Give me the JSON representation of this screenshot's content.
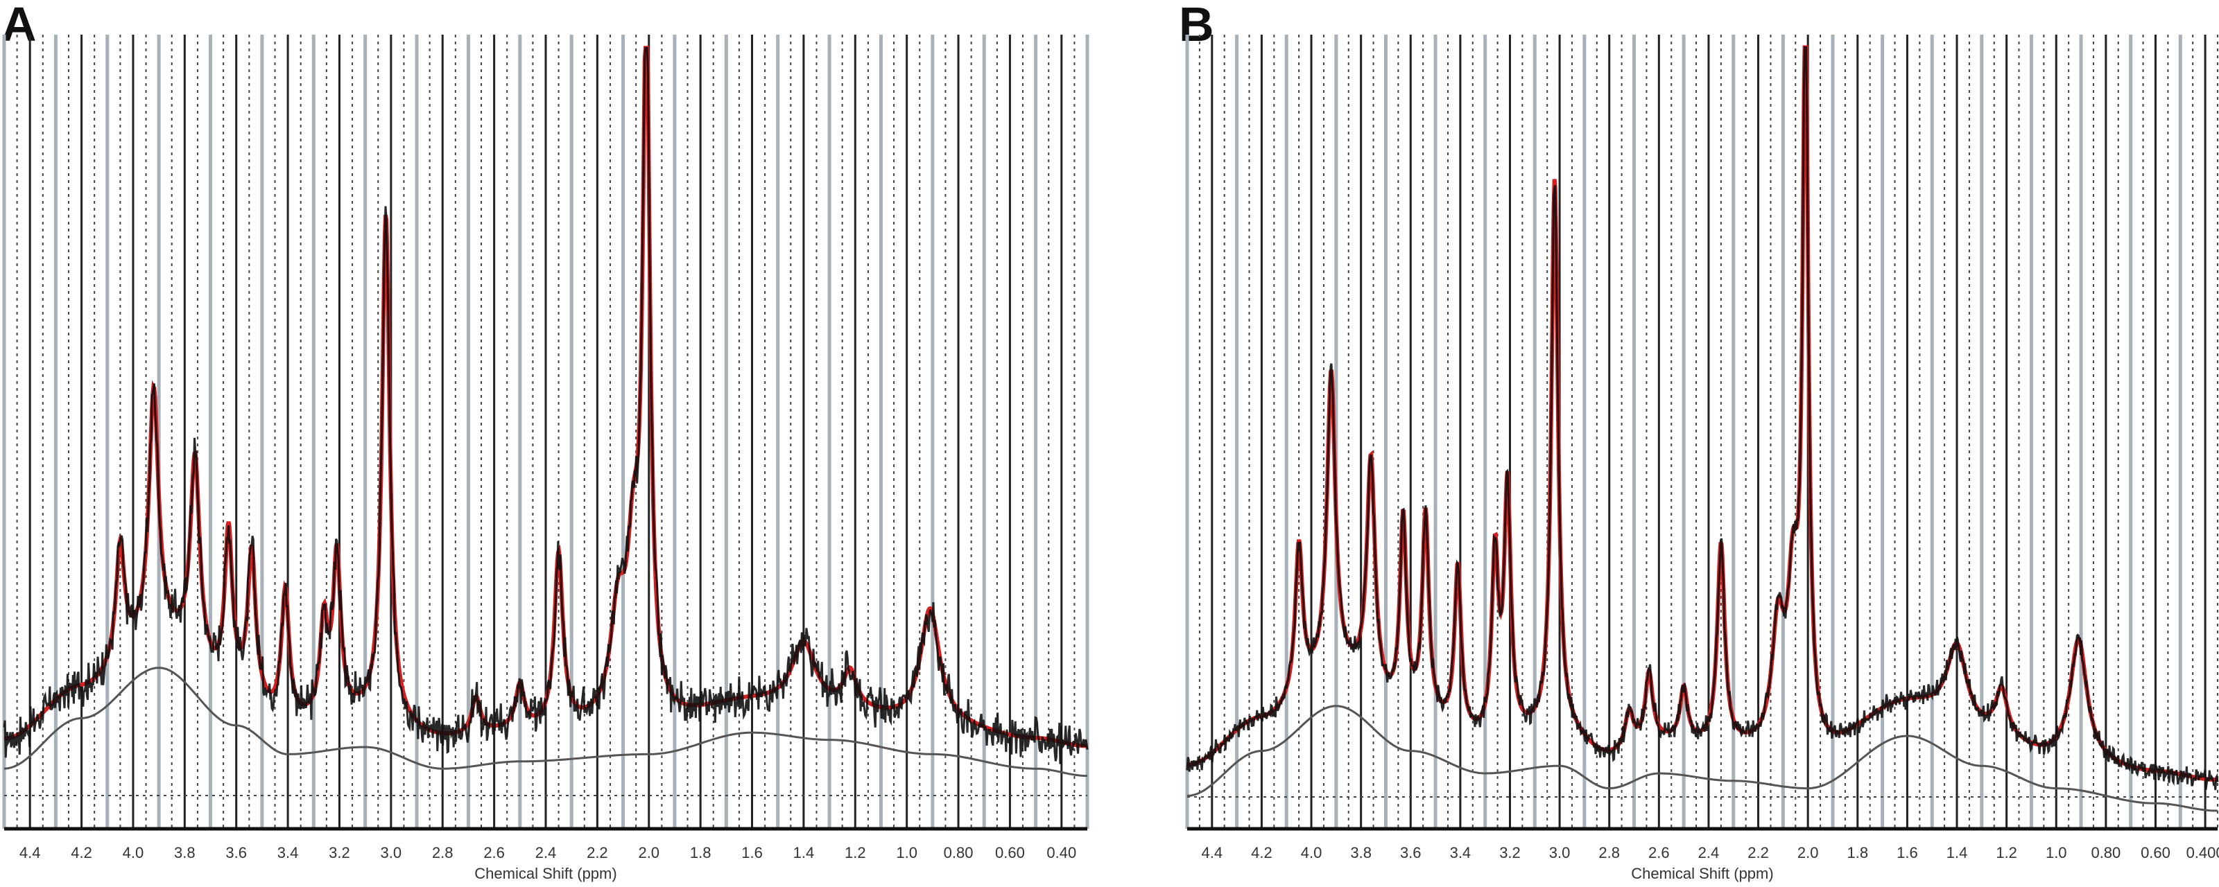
{
  "panels": [
    {
      "letter": "A"
    },
    {
      "letter": "B"
    }
  ],
  "colors": {
    "fit": "#d62020",
    "data": "#111111",
    "baseline": "#555555",
    "gridSolid": "#a8b0b8",
    "gridDotted": "#444444",
    "background": "#ffffff"
  },
  "chart_data": [
    {
      "type": "line",
      "title": "",
      "xlabel": "Chemical Shift (ppm)",
      "ylabel": "",
      "x_reversed": true,
      "xlim": [
        4.5,
        0.3
      ],
      "ylim": [
        0,
        1
      ],
      "x_ticks": [
        "4.4",
        "4.2",
        "4.0",
        "3.8",
        "3.6",
        "3.4",
        "3.2",
        "3.0",
        "2.8",
        "2.6",
        "2.4",
        "2.2",
        "2.0",
        "1.8",
        "1.6",
        "1.4",
        "1.2",
        "1.0",
        "0.80",
        "0.60",
        "0.40"
      ],
      "grid": true,
      "legend": "none",
      "peaks": [
        {
          "ppm": 4.05,
          "height": 0.16,
          "width": 0.02
        },
        {
          "ppm": 3.92,
          "height": 0.34,
          "width": 0.022
        },
        {
          "ppm": 3.76,
          "height": 0.28,
          "width": 0.022
        },
        {
          "ppm": 3.63,
          "height": 0.22,
          "width": 0.018
        },
        {
          "ppm": 3.54,
          "height": 0.2,
          "width": 0.018
        },
        {
          "ppm": 3.41,
          "height": 0.18,
          "width": 0.018
        },
        {
          "ppm": 3.26,
          "height": 0.13,
          "width": 0.018
        },
        {
          "ppm": 3.21,
          "height": 0.22,
          "width": 0.018
        },
        {
          "ppm": 3.02,
          "height": 0.7,
          "width": 0.018
        },
        {
          "ppm": 2.67,
          "height": 0.05,
          "width": 0.02
        },
        {
          "ppm": 2.5,
          "height": 0.06,
          "width": 0.02
        },
        {
          "ppm": 2.35,
          "height": 0.24,
          "width": 0.02
        },
        {
          "ppm": 2.12,
          "height": 0.14,
          "width": 0.035
        },
        {
          "ppm": 2.06,
          "height": 0.2,
          "width": 0.03
        },
        {
          "ppm": 2.01,
          "height": 0.95,
          "width": 0.017
        },
        {
          "ppm": 1.4,
          "height": 0.09,
          "width": 0.055
        },
        {
          "ppm": 1.22,
          "height": 0.05,
          "width": 0.03
        },
        {
          "ppm": 0.91,
          "height": 0.16,
          "width": 0.045
        }
      ],
      "baseline": [
        {
          "ppm": 4.5,
          "y": 0.02
        },
        {
          "ppm": 4.2,
          "y": 0.09
        },
        {
          "ppm": 3.9,
          "y": 0.16
        },
        {
          "ppm": 3.6,
          "y": 0.08
        },
        {
          "ppm": 3.4,
          "y": 0.04
        },
        {
          "ppm": 3.1,
          "y": 0.05
        },
        {
          "ppm": 2.8,
          "y": 0.02
        },
        {
          "ppm": 2.5,
          "y": 0.03
        },
        {
          "ppm": 2.0,
          "y": 0.04
        },
        {
          "ppm": 1.6,
          "y": 0.07
        },
        {
          "ppm": 1.3,
          "y": 0.06
        },
        {
          "ppm": 0.9,
          "y": 0.04
        },
        {
          "ppm": 0.5,
          "y": 0.02
        },
        {
          "ppm": 0.3,
          "y": 0.01
        }
      ],
      "noise": 0.02
    },
    {
      "type": "line",
      "title": "",
      "xlabel": "Chemical Shift (ppm)",
      "ylabel": "",
      "x_reversed": true,
      "xlim": [
        4.5,
        0.35
      ],
      "ylim": [
        0,
        1
      ],
      "x_ticks": [
        "4.4",
        "4.2",
        "4.0",
        "3.8",
        "3.6",
        "3.4",
        "3.2",
        "3.0",
        "2.8",
        "2.6",
        "2.4",
        "2.2",
        "2.0",
        "1.8",
        "1.6",
        "1.4",
        "1.2",
        "1.0",
        "0.80",
        "0.60",
        "0.400"
      ],
      "grid": true,
      "legend": "none",
      "peaks": [
        {
          "ppm": 4.05,
          "height": 0.2,
          "width": 0.018
        },
        {
          "ppm": 3.92,
          "height": 0.4,
          "width": 0.02
        },
        {
          "ppm": 3.76,
          "height": 0.31,
          "width": 0.02
        },
        {
          "ppm": 3.63,
          "height": 0.26,
          "width": 0.016
        },
        {
          "ppm": 3.54,
          "height": 0.27,
          "width": 0.016
        },
        {
          "ppm": 3.41,
          "height": 0.22,
          "width": 0.016
        },
        {
          "ppm": 3.26,
          "height": 0.24,
          "width": 0.016
        },
        {
          "ppm": 3.21,
          "height": 0.33,
          "width": 0.016
        },
        {
          "ppm": 3.02,
          "height": 0.74,
          "width": 0.016
        },
        {
          "ppm": 2.72,
          "height": 0.05,
          "width": 0.02
        },
        {
          "ppm": 2.64,
          "height": 0.09,
          "width": 0.018
        },
        {
          "ppm": 2.5,
          "height": 0.07,
          "width": 0.018
        },
        {
          "ppm": 2.35,
          "height": 0.27,
          "width": 0.018
        },
        {
          "ppm": 2.12,
          "height": 0.16,
          "width": 0.03
        },
        {
          "ppm": 2.06,
          "height": 0.2,
          "width": 0.026
        },
        {
          "ppm": 2.01,
          "height": 0.97,
          "width": 0.014
        },
        {
          "ppm": 1.4,
          "height": 0.11,
          "width": 0.05
        },
        {
          "ppm": 1.22,
          "height": 0.06,
          "width": 0.028
        },
        {
          "ppm": 0.91,
          "height": 0.16,
          "width": 0.04
        }
      ],
      "baseline": [
        {
          "ppm": 4.5,
          "y": 0.02
        },
        {
          "ppm": 4.2,
          "y": 0.08
        },
        {
          "ppm": 3.9,
          "y": 0.14
        },
        {
          "ppm": 3.6,
          "y": 0.08
        },
        {
          "ppm": 3.3,
          "y": 0.05
        },
        {
          "ppm": 3.0,
          "y": 0.06
        },
        {
          "ppm": 2.8,
          "y": 0.03
        },
        {
          "ppm": 2.6,
          "y": 0.05
        },
        {
          "ppm": 2.3,
          "y": 0.04
        },
        {
          "ppm": 2.0,
          "y": 0.03
        },
        {
          "ppm": 1.6,
          "y": 0.1
        },
        {
          "ppm": 1.3,
          "y": 0.06
        },
        {
          "ppm": 1.0,
          "y": 0.03
        },
        {
          "ppm": 0.6,
          "y": 0.01
        },
        {
          "ppm": 0.35,
          "y": 0.0
        }
      ],
      "noise": 0.01
    }
  ]
}
